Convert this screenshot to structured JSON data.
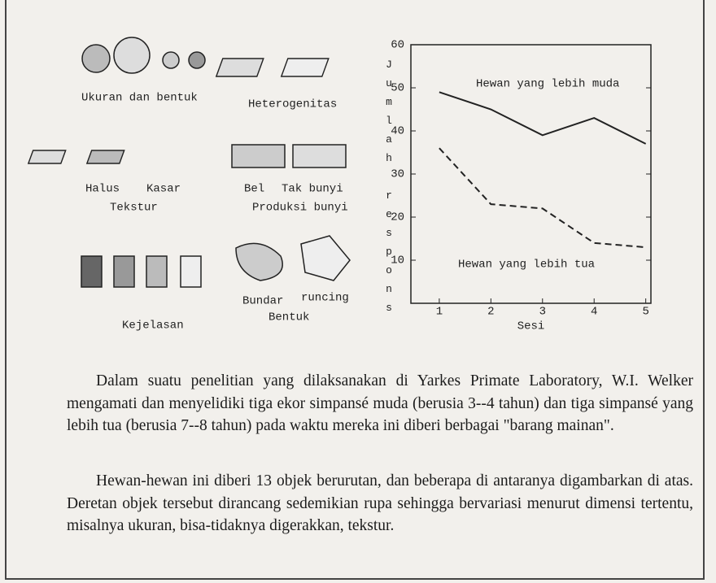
{
  "figure_labels": [
    "Ukuran dan bentuk",
    "Heterogenitas",
    "Halus",
    "Kasar",
    "Tekstur",
    "Bel",
    "Tak bunyi",
    "Produksi bunyi",
    "Kejelasan",
    "Bundar",
    "runcing",
    "Bentuk"
  ],
  "chart_data": {
    "type": "line",
    "ylabel": "Jumlah respons",
    "xlabel": "Sesi",
    "x": [
      1,
      2,
      3,
      4,
      5
    ],
    "xlim": [
      0.45,
      5.1
    ],
    "xticks": [
      1,
      2,
      3,
      4,
      5
    ],
    "ylim": [
      0,
      60
    ],
    "yticks": [
      10,
      20,
      30,
      40,
      50,
      60
    ],
    "series": [
      {
        "name": "Hewan yang lebih muda",
        "color": "#222222",
        "dash": false,
        "values": [
          49,
          45,
          39,
          43,
          37
        ]
      },
      {
        "name": "Hewan yang lebih tua",
        "color": "#222222",
        "dash": true,
        "values": [
          36,
          23,
          22,
          14,
          13
        ]
      }
    ]
  },
  "paragraphs": [
    "Dalam suatu penelitian yang dilaksanakan di Yarkes Primate Laboratory, W.I. Welker mengamati dan menyelidiki tiga ekor simpansé muda (berusia 3--4 tahun) dan tiga simpansé yang lebih tua (berusia 7--8 tahun) pada waktu mereka ini diberi berbagai \"barang mainan\".",
    "Hewan-hewan ini diberi 13 objek berurutan, dan beberapa di antaranya digambarkan di atas. Deretan objek tersebut dirancang sedemikian rupa sehingga bervariasi menurut dimensi tertentu, misalnya ukuran, bisa-tidaknya digerakkan, tekstur."
  ]
}
